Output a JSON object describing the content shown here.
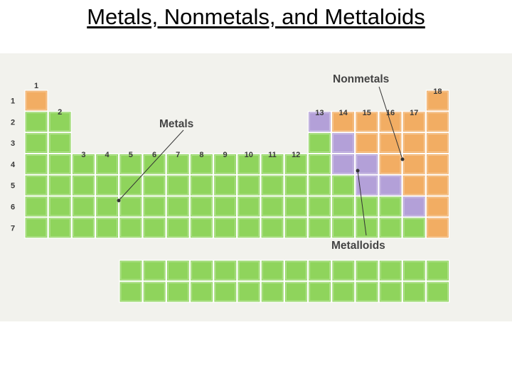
{
  "title": "Metals, Nonmetals, and Mettaloids",
  "labels": {
    "metals": "Metals",
    "nonmetals": "Nonmetals",
    "metalloids": "Metalloids"
  },
  "groups": [
    "1",
    "2",
    "3",
    "4",
    "5",
    "6",
    "7",
    "8",
    "9",
    "10",
    "11",
    "12",
    "13",
    "14",
    "15",
    "16",
    "17",
    "18"
  ],
  "periods": [
    "1",
    "2",
    "3",
    "4",
    "5",
    "6",
    "7"
  ],
  "colors": {
    "metal": "#8fd45c",
    "nonmetal": "#f2ad63",
    "metalloid": "#b3a0d8",
    "background": "#f2f2ed"
  }
}
